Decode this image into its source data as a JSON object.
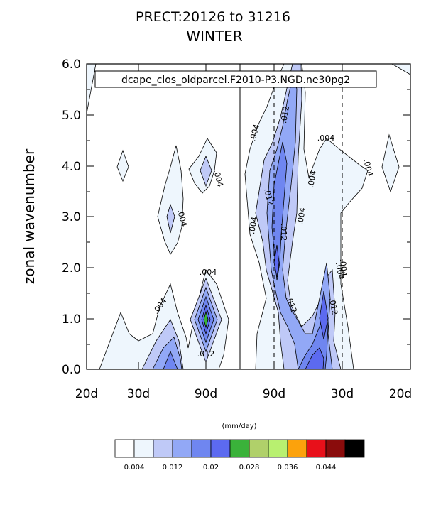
{
  "chart_data": {
    "type": "contour",
    "title": "PRECT:20126 to 31216",
    "subtitle": "WINTER",
    "ylabel": "zonal wavenumber",
    "ylim": [
      0,
      6
    ],
    "y_ticks": [
      "0.0",
      "1.0",
      "2.0",
      "3.0",
      "4.0",
      "5.0",
      "6.0"
    ],
    "x_ticks": [
      "20d",
      "30d",
      "90d",
      "90d",
      "30d",
      "20d"
    ],
    "legend_text": "dcape_clos_oldparcel.F2010-P3.NGD.ne30pg2",
    "contour_labels": [
      ".004",
      ".004",
      ".004",
      ".004",
      ".012",
      ".004",
      ".012",
      ".004",
      ".012",
      ".004",
      ".012",
      ".012",
      ".004",
      ".004",
      ".004",
      ".004",
      ".004",
      ".012"
    ],
    "colorbar": {
      "units": "(mm/day)",
      "colors": [
        "#ffffff",
        "#eef6fd",
        "#bfc9f7",
        "#92a8f6",
        "#6f86f0",
        "#5c6af0",
        "#3ab23a",
        "#b0d06a",
        "#b8f070",
        "#fca20c",
        "#e8101a",
        "#8a0c0c",
        "#000000"
      ],
      "labels": [
        "0.004",
        "0.012",
        "0.02",
        "0.028",
        "0.036",
        "0.044"
      ]
    }
  }
}
